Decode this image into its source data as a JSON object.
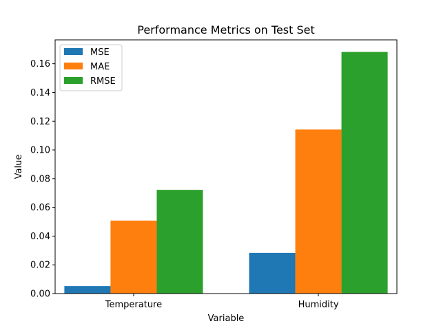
{
  "chart_data": {
    "type": "bar",
    "title": "Performance Metrics on Test Set",
    "xlabel": "Variable",
    "ylabel": "Value",
    "categories": [
      "Temperature",
      "Humidity"
    ],
    "series": [
      {
        "name": "MSE",
        "color": "#1f77b4",
        "values": [
          0.0052,
          0.0283
        ]
      },
      {
        "name": "MAE",
        "color": "#ff7f0e",
        "values": [
          0.0508,
          0.1142
        ]
      },
      {
        "name": "RMSE",
        "color": "#2ca02c",
        "values": [
          0.0722,
          0.1682
        ]
      }
    ],
    "ylim": [
      0,
      0.1766
    ],
    "yticks": [
      "0.00",
      "0.02",
      "0.04",
      "0.06",
      "0.08",
      "0.10",
      "0.12",
      "0.14",
      "0.16"
    ],
    "grid": false,
    "legend_position": "top-left"
  }
}
